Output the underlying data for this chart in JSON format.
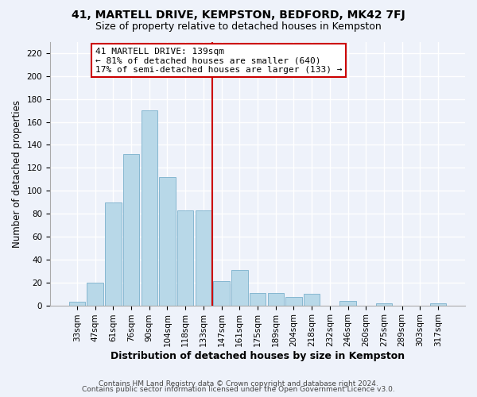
{
  "title": "41, MARTELL DRIVE, KEMPSTON, BEDFORD, MK42 7FJ",
  "subtitle": "Size of property relative to detached houses in Kempston",
  "xlabel": "Distribution of detached houses by size in Kempston",
  "ylabel": "Number of detached properties",
  "bar_labels": [
    "33sqm",
    "47sqm",
    "61sqm",
    "76sqm",
    "90sqm",
    "104sqm",
    "118sqm",
    "133sqm",
    "147sqm",
    "161sqm",
    "175sqm",
    "189sqm",
    "204sqm",
    "218sqm",
    "232sqm",
    "246sqm",
    "260sqm",
    "275sqm",
    "289sqm",
    "303sqm",
    "317sqm"
  ],
  "bar_values": [
    3,
    20,
    90,
    132,
    170,
    112,
    83,
    83,
    21,
    31,
    11,
    11,
    7,
    10,
    0,
    4,
    0,
    2,
    0,
    0,
    2
  ],
  "bar_color": "#b8d8e8",
  "bar_edge_color": "#7ab0cc",
  "vline_pos": 7.5,
  "vline_color": "#cc0000",
  "annotation_title": "41 MARTELL DRIVE: 139sqm",
  "annotation_line1": "← 81% of detached houses are smaller (640)",
  "annotation_line2": "17% of semi-detached houses are larger (133) →",
  "annotation_box_color": "#ffffff",
  "annotation_box_edge": "#cc0000",
  "ylim": [
    0,
    230
  ],
  "yticks": [
    0,
    20,
    40,
    60,
    80,
    100,
    120,
    140,
    160,
    180,
    200,
    220
  ],
  "footer1": "Contains HM Land Registry data © Crown copyright and database right 2024.",
  "footer2": "Contains public sector information licensed under the Open Government Licence v3.0.",
  "bg_color": "#eef2fa",
  "grid_color": "#ffffff",
  "title_fontsize": 10,
  "subtitle_fontsize": 9,
  "xlabel_fontsize": 9,
  "ylabel_fontsize": 8.5,
  "tick_fontsize": 7.5,
  "footer_fontsize": 6.5
}
